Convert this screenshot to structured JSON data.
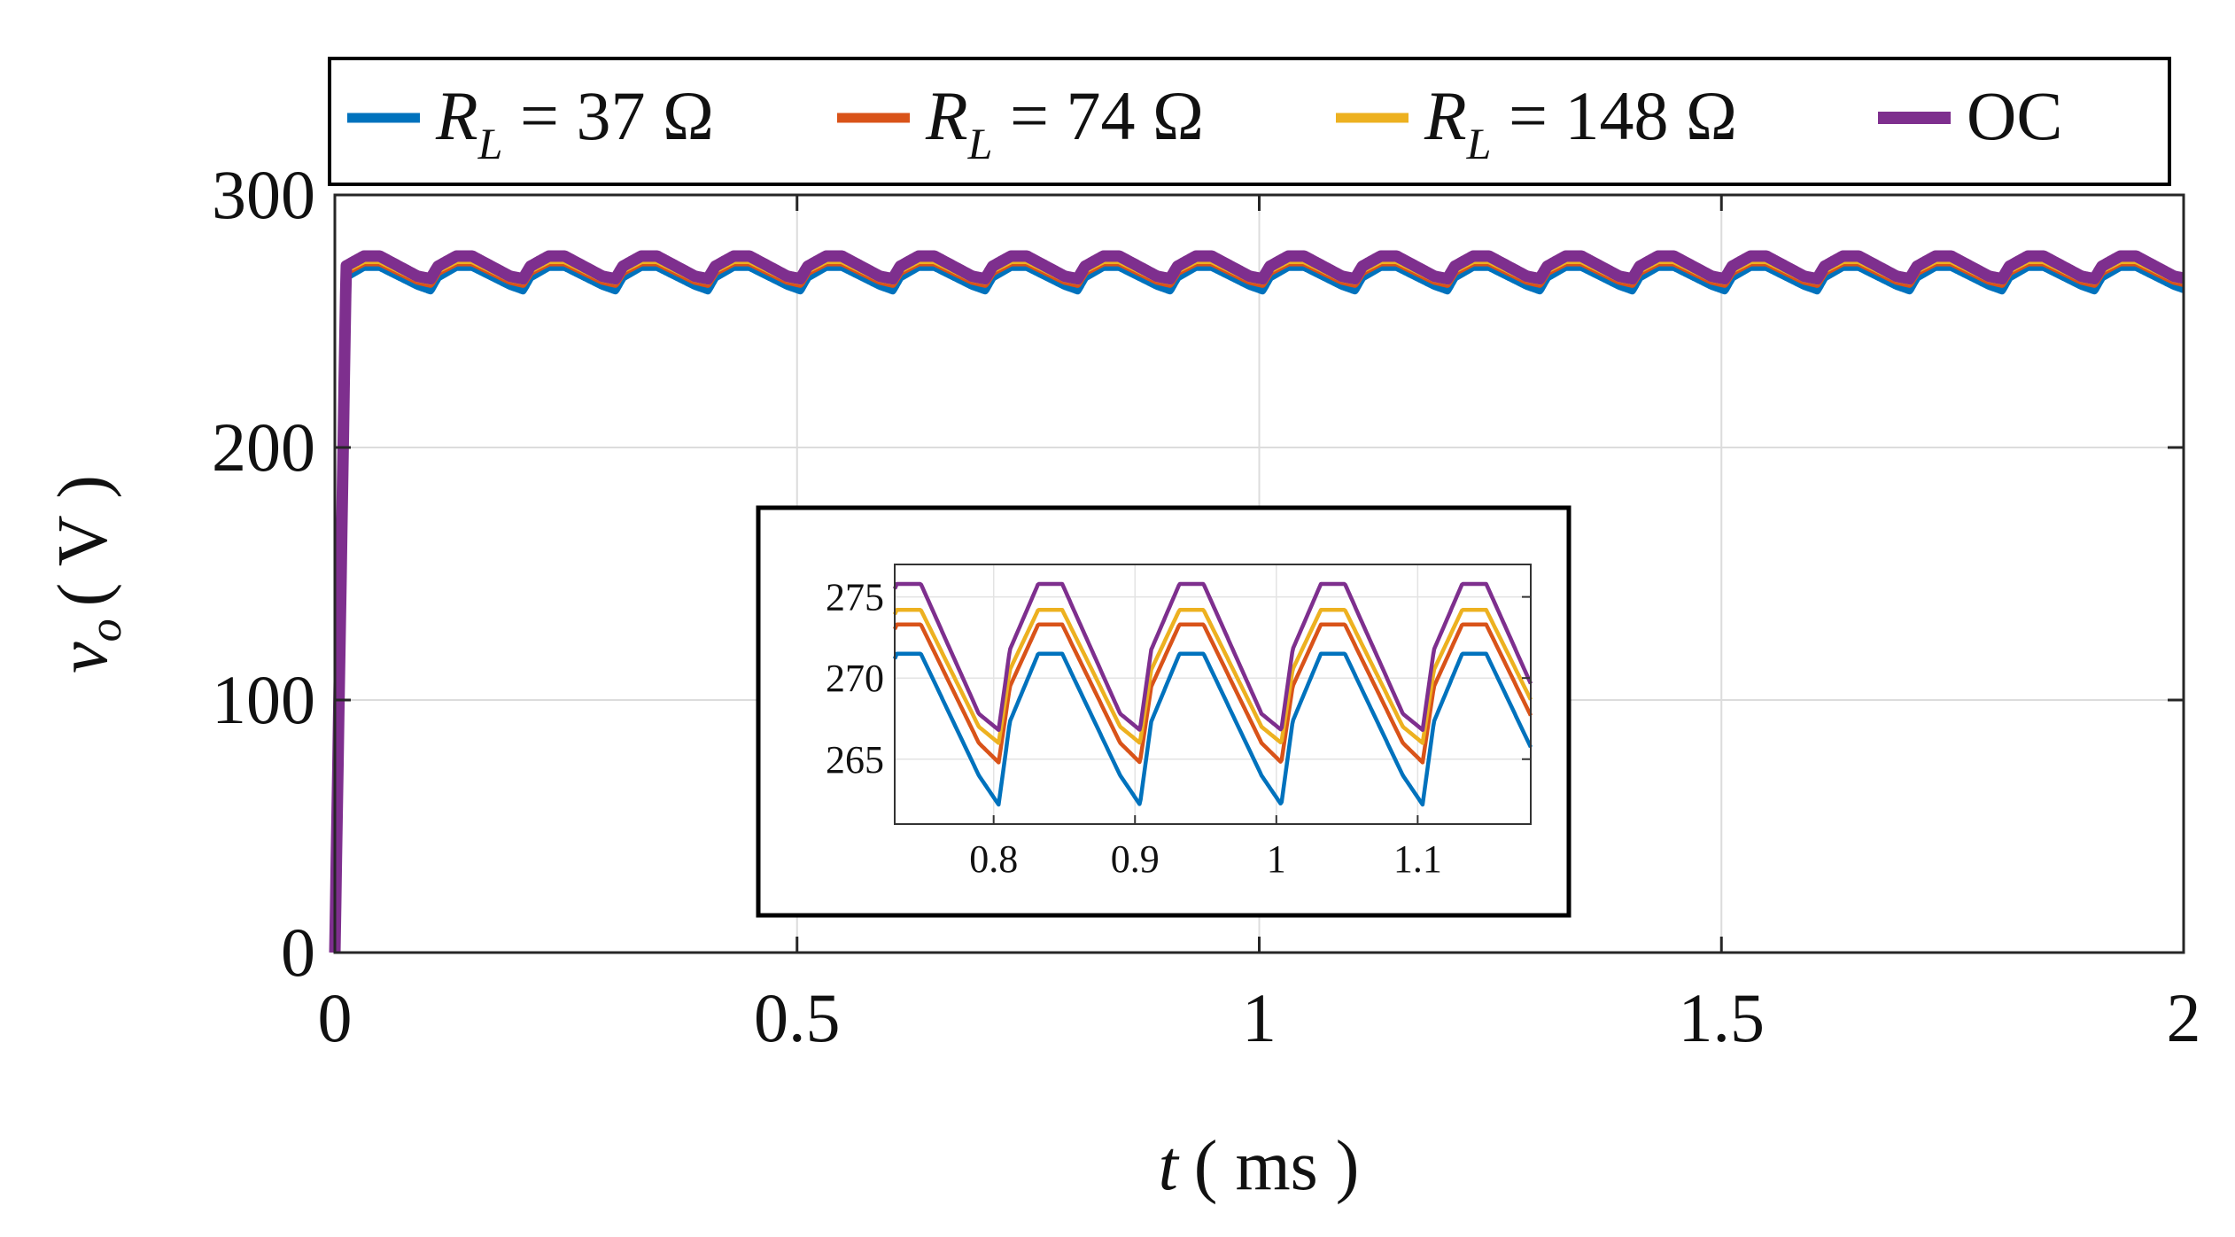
{
  "chart_data": {
    "type": "line",
    "title": "",
    "xlabel_italic": "t",
    "xlabel_unit": "( ms )",
    "ylabel_italic": "v",
    "ylabel_subscript": "o",
    "ylabel_unit": "( V )",
    "xlim": [
      0,
      2
    ],
    "ylim": [
      0,
      300
    ],
    "x_ticks": [
      "0",
      "0.5",
      "1",
      "1.5",
      "2"
    ],
    "y_ticks": [
      "0",
      "100",
      "200",
      "300"
    ],
    "grid": true,
    "legend_position": "top",
    "ripple_period_ms": 0.1,
    "series": [
      {
        "name": "R_L = 37 Ω",
        "label_italic": "R",
        "label_sub": "L",
        "label_rest": " = 37 Ω",
        "color": "#0072BD",
        "peak": 271.5,
        "trough": 264.0,
        "dip": 262.2
      },
      {
        "name": "R_L = 74 Ω",
        "label_italic": "R",
        "label_sub": "L",
        "label_rest": " = 74 Ω",
        "color": "#D95319",
        "peak": 273.3,
        "trough": 266.0,
        "dip": 264.8
      },
      {
        "name": "R_L = 148 Ω",
        "label_italic": "R",
        "label_sub": "L",
        "label_rest": " = 148 Ω",
        "color": "#EDB120",
        "peak": 274.2,
        "trough": 267.0,
        "dip": 266.0
      },
      {
        "name": "OC",
        "label_plain": "OC",
        "color": "#7E2F8E",
        "peak": 275.8,
        "trough": 267.8,
        "dip": 266.8
      }
    ],
    "inset": {
      "xlim": [
        0.73,
        1.18
      ],
      "ylim": [
        261,
        277
      ],
      "x_ticks": [
        "0.8",
        "0.9",
        "1",
        "1.1"
      ],
      "y_ticks": [
        "265",
        "270",
        "275"
      ]
    }
  }
}
